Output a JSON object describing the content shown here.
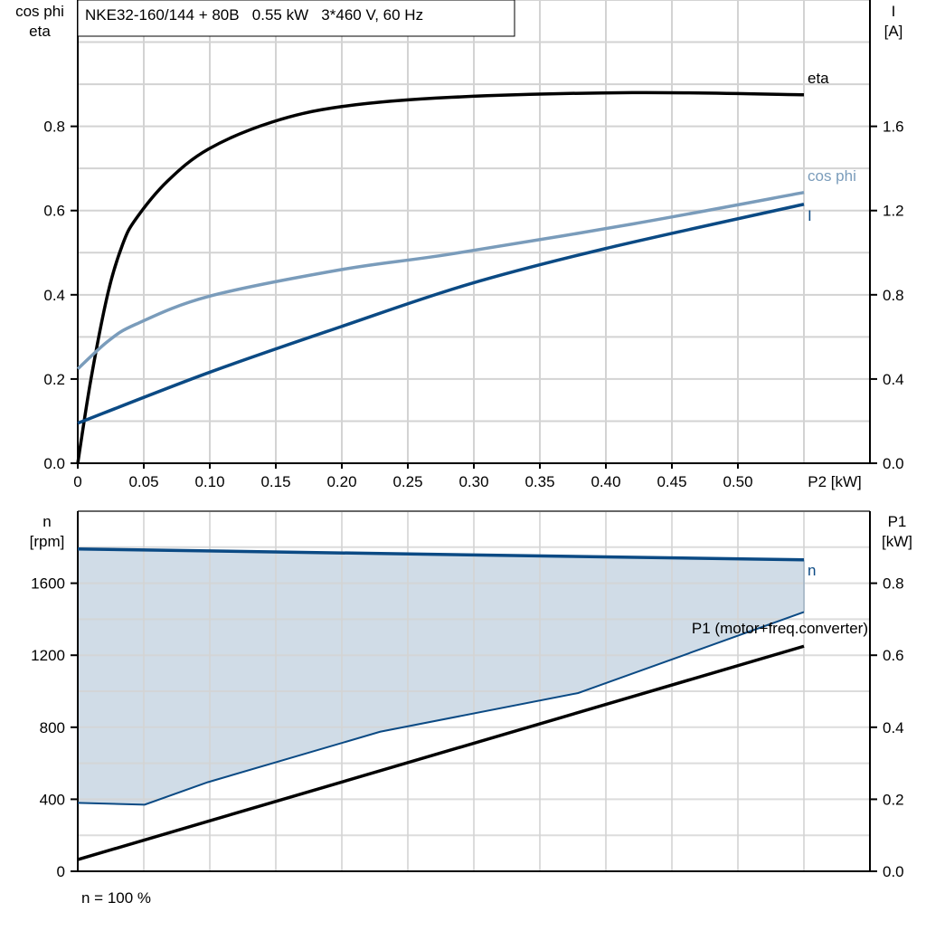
{
  "header": {
    "title": "NKE32-160/144 + 80B   0.55 kW   3*460 V, 60 Hz"
  },
  "footer": {
    "note": "n = 100 %"
  },
  "chart_data": [
    {
      "type": "line",
      "xlabel": "P2 [kW]",
      "ylabel_left": [
        "cos phi",
        "eta"
      ],
      "ylabel_right": [
        "I",
        "[A]"
      ],
      "xlim": [
        0,
        0.6
      ],
      "ylim_left": [
        0,
        1.1
      ],
      "ylim_right": [
        0,
        2.2
      ],
      "x_ticks": [
        "0",
        "0.05",
        "0.10",
        "0.15",
        "0.20",
        "0.25",
        "0.30",
        "0.35",
        "0.40",
        "0.45",
        "0.50"
      ],
      "y_ticks_left": [
        "0.0",
        "0.2",
        "0.4",
        "0.6",
        "0.8"
      ],
      "y_ticks_right": [
        "0.0",
        "0.4",
        "0.8",
        "1.2",
        "1.6"
      ],
      "grid": true,
      "series": [
        {
          "name": "eta",
          "axis": "left",
          "color": "#000000",
          "x": [
            0,
            0.01,
            0.023,
            0.034,
            0.044,
            0.068,
            0.099,
            0.147,
            0.2,
            0.283,
            0.42,
            0.55
          ],
          "y": [
            0,
            0.2,
            0.406,
            0.52,
            0.58,
            0.67,
            0.746,
            0.81,
            0.847,
            0.869,
            0.88,
            0.875
          ]
        },
        {
          "name": "cos phi",
          "axis": "left",
          "color": "#7a9cbb",
          "x": [
            0,
            0.023,
            0.044,
            0.099,
            0.2,
            0.283,
            0.42,
            0.55
          ],
          "y": [
            0.224,
            0.29,
            0.33,
            0.396,
            0.46,
            0.497,
            0.568,
            0.643
          ]
        },
        {
          "name": "I",
          "axis": "right",
          "color": "#0b4a84",
          "x": [
            0,
            0.099,
            0.2,
            0.296,
            0.4,
            0.55
          ],
          "y": [
            0.19,
            0.43,
            0.65,
            0.85,
            1.02,
            1.23
          ]
        }
      ]
    },
    {
      "type": "line",
      "ylabel_left": [
        "n",
        "[rpm]"
      ],
      "ylabel_right": [
        "P1",
        "[kW]"
      ],
      "xlim": [
        0,
        0.6
      ],
      "ylim_left": [
        0,
        2000
      ],
      "ylim_right": [
        0,
        1.0
      ],
      "y_ticks_left": [
        "0",
        "400",
        "800",
        "1200",
        "1600"
      ],
      "y_ticks_right": [
        "0.0",
        "0.2",
        "0.4",
        "0.6",
        "0.8"
      ],
      "grid": true,
      "series": [
        {
          "name": "n",
          "axis": "left",
          "color": "#0b4a84",
          "x": [
            0,
            0.55
          ],
          "y": [
            1790,
            1730
          ]
        },
        {
          "name": "n range lower bound",
          "axis": "left",
          "color": "#0b4a84",
          "x": [
            0,
            0.0507,
            0.0986,
            0.229,
            0.379,
            0.55
          ],
          "y": [
            380,
            370,
            495,
            775,
            990,
            1440
          ]
        },
        {
          "name": "P1 (motor+freq.converter)",
          "axis": "right",
          "color": "#000000",
          "x": [
            0,
            0.55
          ],
          "y": [
            0.0325,
            0.625
          ]
        }
      ],
      "fill_color": "#d0dce7"
    }
  ]
}
